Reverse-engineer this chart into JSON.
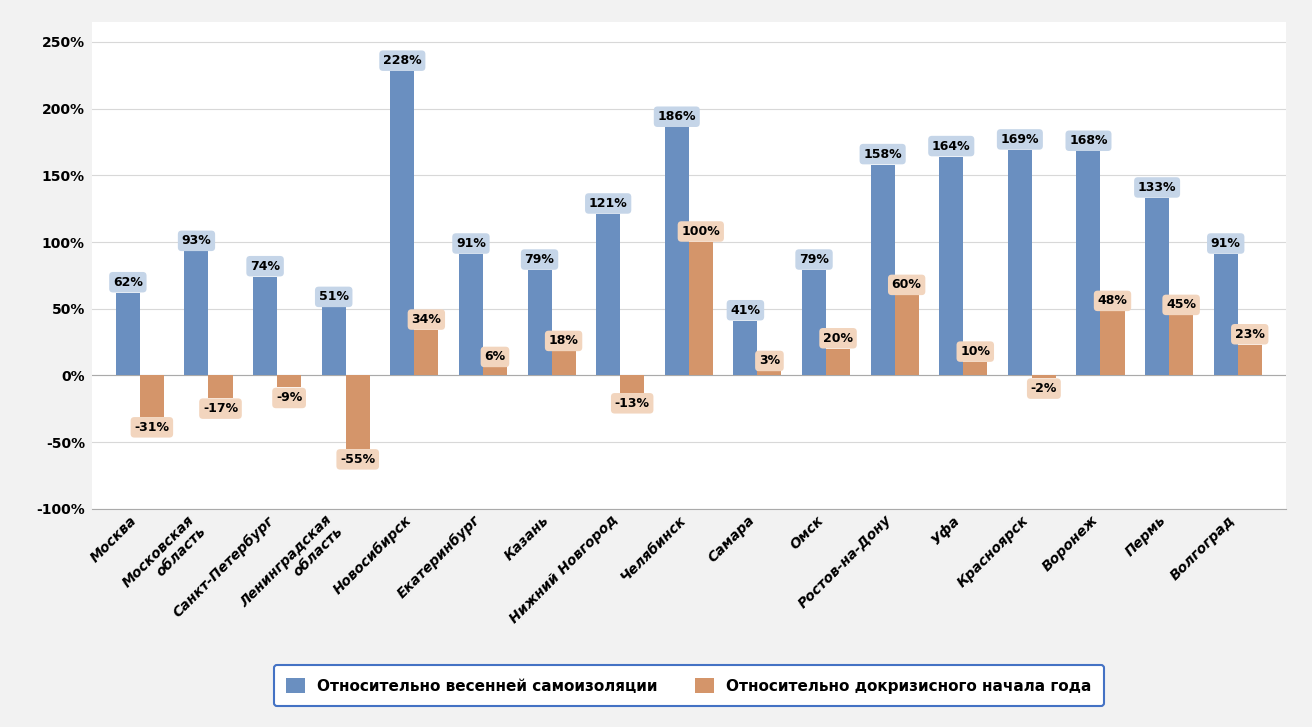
{
  "categories": [
    "Москва",
    "Московская\nобласть",
    "Санкт-Петербург",
    "Ленинградская\nобласть",
    "Новосибирск",
    "Екатеринбург",
    "Казань",
    "Нижний Новгород",
    "Челябинск",
    "Самара",
    "Омск",
    "Ростов-на-Дону",
    "Уфа",
    "Красноярск",
    "Воронеж",
    "Пермь",
    "Волгоград"
  ],
  "blue_values": [
    62,
    93,
    74,
    51,
    228,
    91,
    79,
    121,
    186,
    41,
    79,
    158,
    164,
    169,
    168,
    133,
    91
  ],
  "orange_values": [
    -31,
    -17,
    -9,
    -55,
    34,
    6,
    18,
    -13,
    100,
    3,
    20,
    60,
    10,
    -2,
    48,
    45,
    23
  ],
  "blue_color": "#6A8FC0",
  "blue_label_bg": "#C5D5E8",
  "orange_color": "#D4956A",
  "orange_label_bg": "#F2D5BE",
  "blue_label": "Относительно весенней самоизоляции",
  "orange_label": "Относительно докризисного начала года",
  "ylim_min": -100,
  "ylim_max": 265,
  "yticks": [
    -100,
    -50,
    0,
    50,
    100,
    150,
    200,
    250
  ],
  "ytick_labels": [
    "-100%",
    "-50%",
    "0%",
    "50%",
    "100%",
    "150%",
    "200%",
    "250%"
  ],
  "background_color": "#F2F2F2",
  "plot_bg_color": "#FFFFFF",
  "grid_color": "#D8D8D8",
  "bar_width": 0.35,
  "label_fontsize": 9,
  "tick_fontsize": 10,
  "legend_fontsize": 11
}
